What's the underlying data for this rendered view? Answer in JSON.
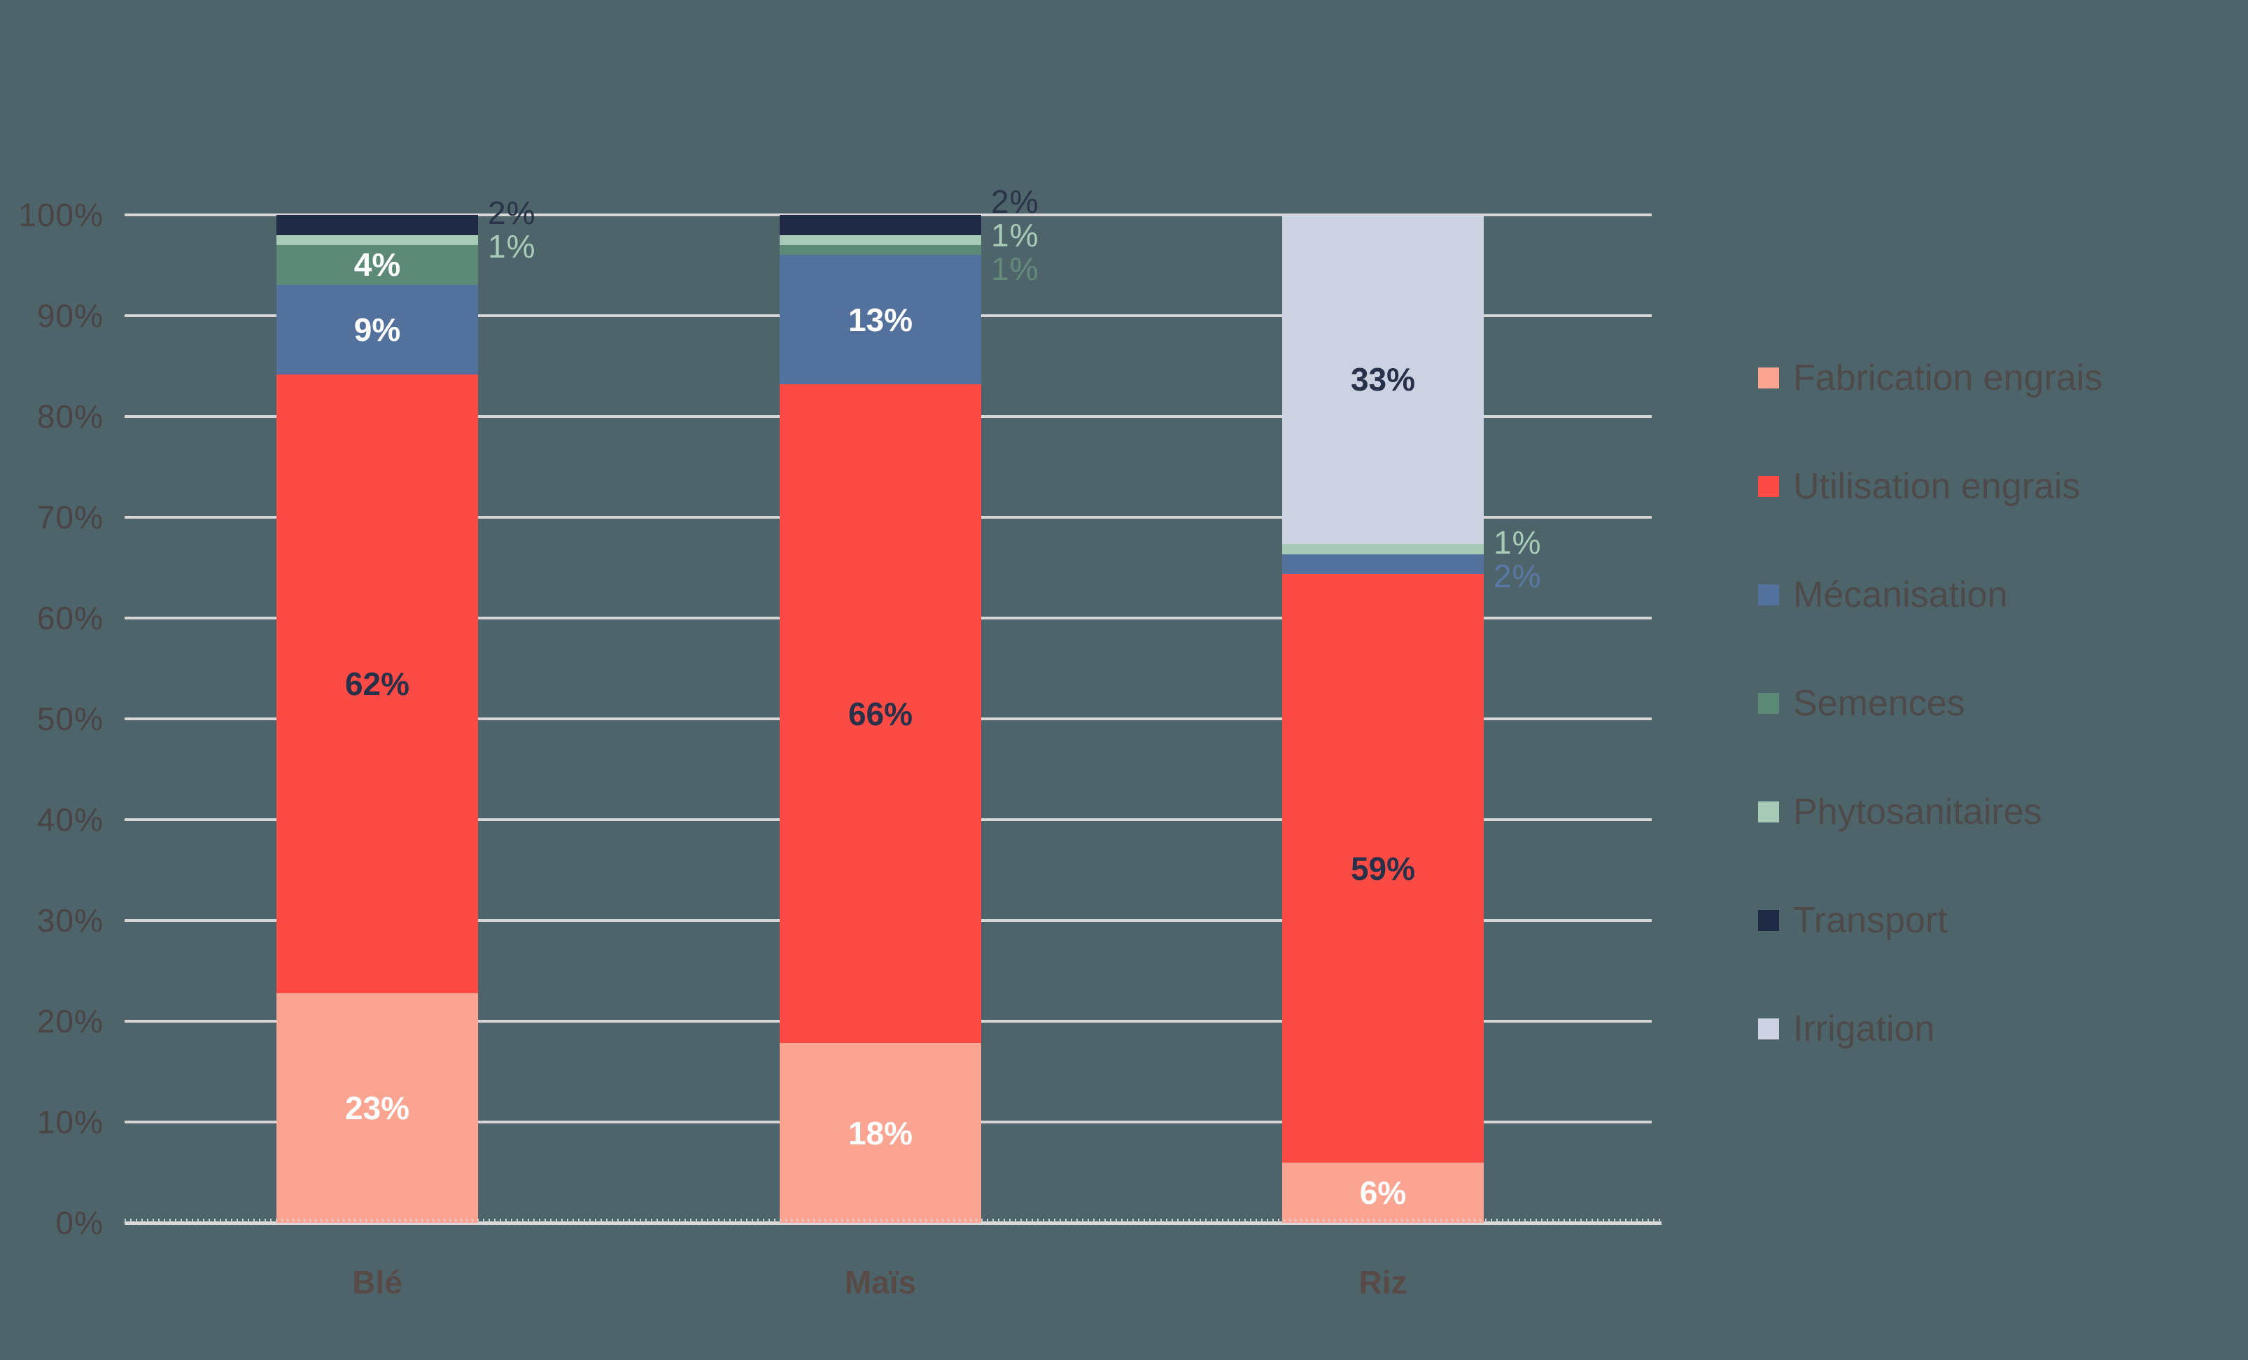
{
  "colors": {
    "background": "#4D656A",
    "gridline": "#D8D6D7",
    "axis_line": "#DAD8D9",
    "y_label_text": "#4B4444",
    "x_label_text": "#584A46",
    "legend_text": "#4E4A49"
  },
  "chart_data": {
    "type": "bar",
    "stacked": true,
    "orientation": "vertical",
    "title": "",
    "xlabel": "",
    "ylabel": "",
    "unit": "%",
    "value_suffix": "%",
    "grid": true,
    "legend_position": "right",
    "categories": [
      "Blé",
      "Maïs",
      "Riz"
    ],
    "series": [
      {
        "name": "Fabrication engrais",
        "color": "#FBA491",
        "values": [
          23,
          18,
          6
        ],
        "inside_text": "#FFFFFF",
        "outside_text": "#FBA491"
      },
      {
        "name": "Utilisation engrais",
        "color": "#FC4B44",
        "values": [
          62,
          66,
          59
        ],
        "inside_text": "#27314A",
        "outside_text": "#FC4B44"
      },
      {
        "name": "Mécanisation",
        "color": "#53719D",
        "values": [
          9,
          13,
          2
        ],
        "inside_text": "#FFFFFF",
        "outside_text": "#5A78A5"
      },
      {
        "name": "Semences",
        "color": "#5C8A76",
        "values": [
          4,
          1,
          0
        ],
        "inside_text": "#FFFFFF",
        "outside_text": "#64897A"
      },
      {
        "name": "Phytosanitaires",
        "color": "#A7CAB6",
        "values": [
          1,
          1,
          1
        ],
        "inside_text": "#27314A",
        "outside_text": "#A8CBB7"
      },
      {
        "name": "Transport",
        "color": "#1F2A45",
        "values": [
          2,
          2,
          0
        ],
        "inside_text": "#FFFFFF",
        "outside_text": "#2A3448"
      },
      {
        "name": "Irrigation",
        "color": "#CCD2E1",
        "values": [
          0,
          0,
          33
        ],
        "inside_text": "#27314A",
        "outside_text": "#CCD2E1"
      }
    ],
    "y_axis": {
      "min": 0,
      "max": 100,
      "tick_step": 10,
      "tick_labels": [
        "0%",
        "10%",
        "20%",
        "30%",
        "40%",
        "50%",
        "60%",
        "70%",
        "80%",
        "90%",
        "100%"
      ]
    },
    "data_labels": {
      "inside_threshold": 4,
      "format": "{value}%"
    }
  }
}
